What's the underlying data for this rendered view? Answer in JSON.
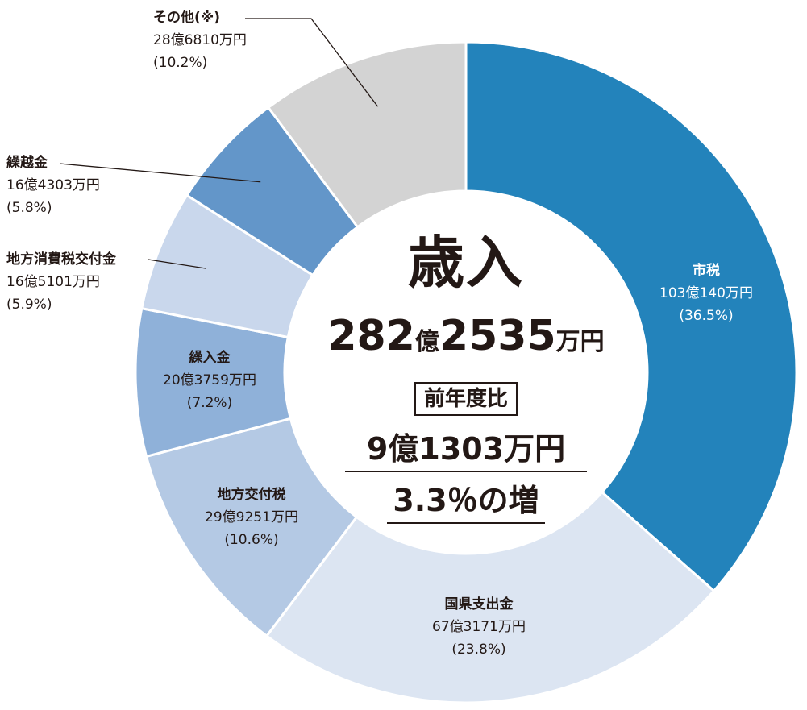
{
  "chart_data": {
    "type": "pie",
    "donut": true,
    "start": "12 o'clock, clockwise",
    "center": {
      "title": "歳入",
      "total_oku": "282",
      "total_oku_unit": "億",
      "total_man": "2535",
      "total_man_unit": "万円",
      "compare_label": "前年度比",
      "diff_text": "9億1303万円",
      "rate_text": "3.3％の増"
    },
    "slices": [
      {
        "name": "市税",
        "amount": "103億140万円",
        "percent_label": "(36.5%)",
        "value": 36.5,
        "color": "#2383bb"
      },
      {
        "name": "国県支出金",
        "amount": "67億3171万円",
        "percent_label": "(23.8%)",
        "value": 23.8,
        "color": "#dce5f2"
      },
      {
        "name": "地方交付税",
        "amount": "29億9251万円",
        "percent_label": "(10.6%)",
        "value": 10.6,
        "color": "#b4c9e4"
      },
      {
        "name": "繰入金",
        "amount": "20億3759万円",
        "percent_label": "(7.2%)",
        "value": 7.2,
        "color": "#8fb1d9"
      },
      {
        "name": "地方消費税交付金",
        "amount": "16億5101万円",
        "percent_label": "(5.9%)",
        "value": 5.9,
        "color": "#c9d7ec"
      },
      {
        "name": "繰越金",
        "amount": "16億4303万円",
        "percent_label": "(5.8%)",
        "value": 5.8,
        "color": "#6396c9"
      },
      {
        "name": "その他(※)",
        "amount": "28億6810万円",
        "percent_label": "(10.2%)",
        "value": 10.2,
        "color": "#d3d3d3"
      }
    ]
  }
}
